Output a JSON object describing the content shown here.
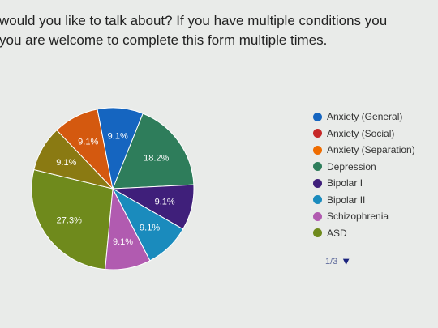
{
  "question": {
    "line1": "would you like to talk about? If you have multiple conditions you",
    "line2": "you are welcome to complete this form multiple times."
  },
  "legend_pager": {
    "label": "1/3",
    "arrow": "▼"
  },
  "chart_data": {
    "type": "pie",
    "start_slice_label": "Depression",
    "slices": [
      {
        "label": "Anxiety (General)",
        "value": 9.1,
        "display": "9.1%",
        "color": "#1565c0",
        "show": true
      },
      {
        "label": "Anxiety (Social)",
        "value": 0,
        "display": "",
        "color": "#c62828",
        "show": true
      },
      {
        "label": "Anxiety (Separation)",
        "value": 0,
        "display": "",
        "color": "#ef6c00",
        "show": true
      },
      {
        "label": "Depression",
        "value": 18.2,
        "display": "18.2%",
        "color": "#2e7d5b",
        "show": true
      },
      {
        "label": "Bipolar I",
        "value": 9.1,
        "display": "9.1%",
        "color": "#3f1f7a",
        "show": true
      },
      {
        "label": "Bipolar II",
        "value": 9.1,
        "display": "9.1%",
        "color": "#1a8bbd",
        "show": true
      },
      {
        "label": "Schizophrenia",
        "value": 9.1,
        "display": "9.1%",
        "color": "#b15bb0",
        "show": true
      },
      {
        "label": "ASD",
        "value": 27.3,
        "display": "27.3%",
        "color": "#6f8a1c",
        "show": true
      },
      {
        "label": "",
        "value": 9.1,
        "display": "9.1%",
        "color": "#8a7a12",
        "show": false
      },
      {
        "label": "",
        "value": 9.1,
        "display": "9.1%",
        "color": "#d4590f",
        "show": false
      }
    ]
  }
}
